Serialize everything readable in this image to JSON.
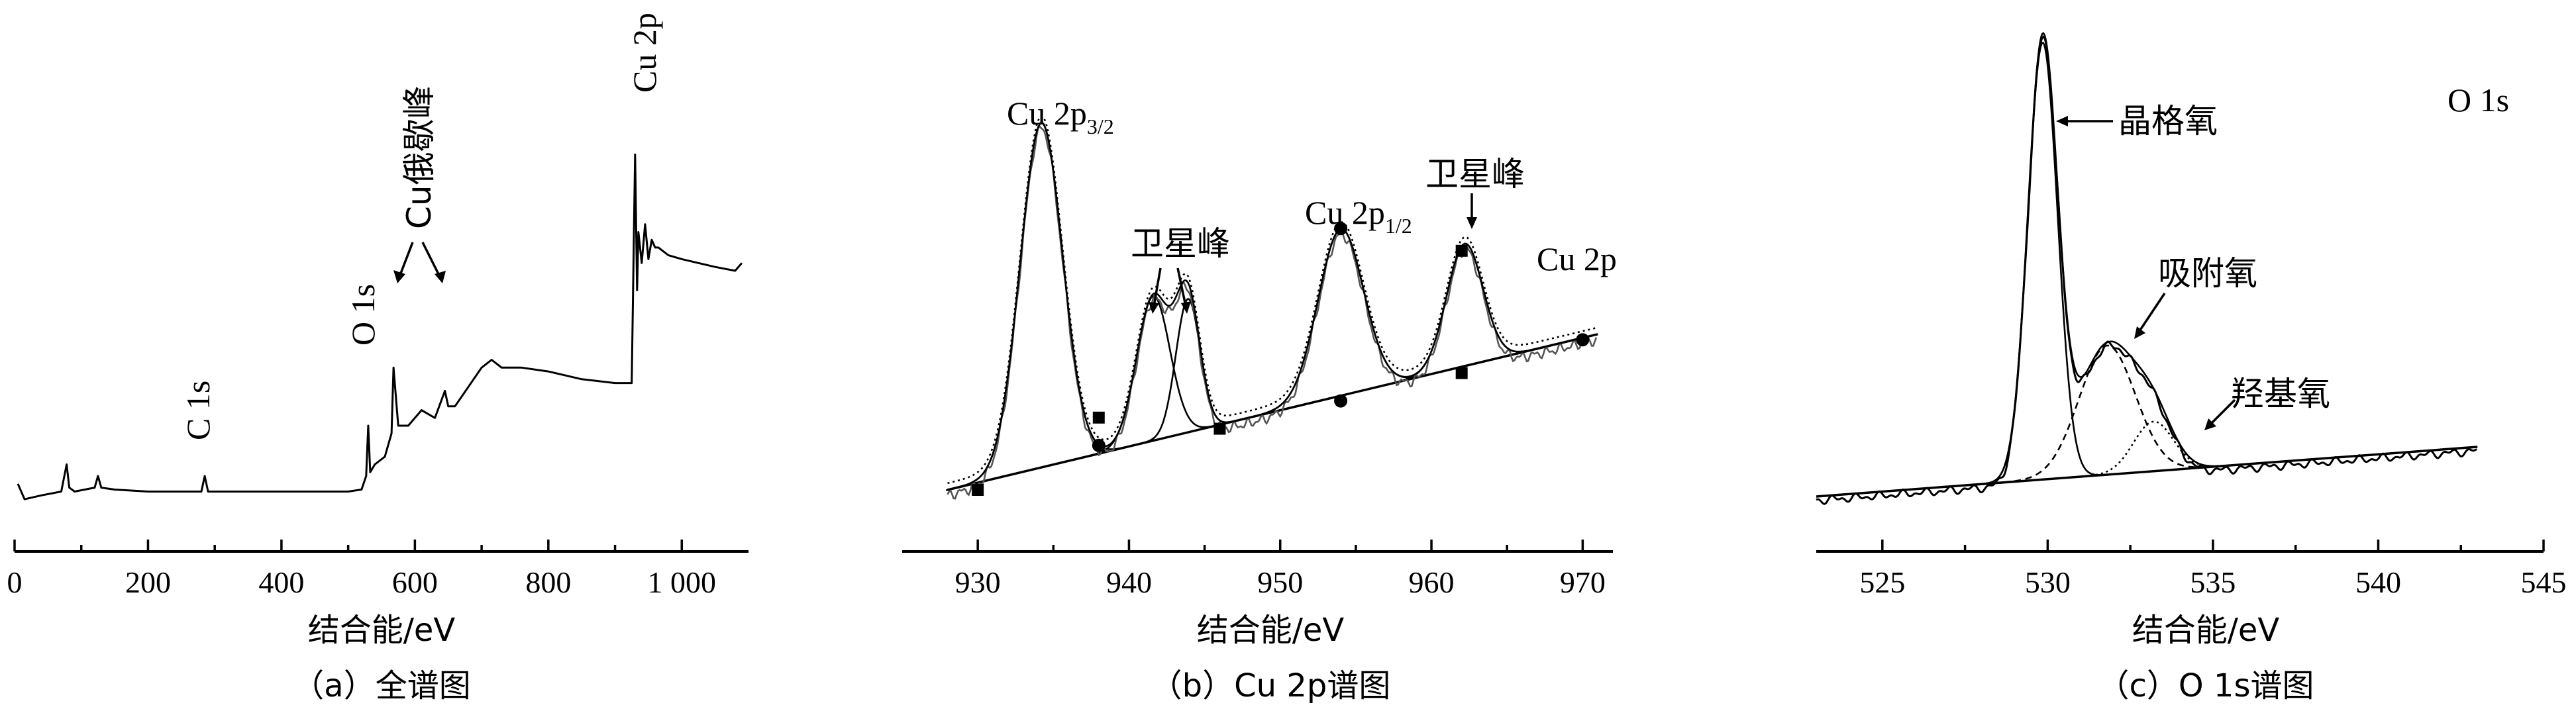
{
  "chart_data": [
    {
      "type": "line",
      "panel": "a",
      "caption": "（a）全谱图",
      "xlabel": "结合能/eV",
      "ylabel": "",
      "xlim": [
        0,
        1100
      ],
      "xticks": [
        0,
        200,
        400,
        600,
        800,
        1000
      ],
      "xtick_labels": [
        "0",
        "200",
        "400",
        "600",
        "800",
        "1 000"
      ],
      "grid": false,
      "annotations": [
        {
          "text": "C 1s",
          "x": 285
        },
        {
          "text": "O 1s",
          "x": 530
        },
        {
          "text": "Cu俄歇峰",
          "x": 600
        },
        {
          "text": "Cu 2p",
          "x": 933
        }
      ],
      "series": [
        {
          "x": [
            5,
            15,
            40,
            70,
            78,
            82,
            90,
            120,
            125,
            130,
            150,
            200,
            250,
            280,
            285,
            290,
            350,
            400,
            460,
            500,
            520,
            527,
            530,
            533,
            540,
            555,
            565,
            568,
            575,
            590,
            610,
            630,
            645,
            650,
            660,
            700,
            715,
            730,
            760,
            800,
            850,
            900,
            925,
            930,
            933,
            935,
            940,
            945,
            950,
            955,
            960,
            965,
            980,
            1000,
            1050,
            1080,
            1090
          ],
          "y": [
            0.05,
            0.01,
            0.02,
            0.03,
            0.1,
            0.04,
            0.03,
            0.04,
            0.07,
            0.04,
            0.035,
            0.03,
            0.03,
            0.03,
            0.07,
            0.03,
            0.03,
            0.03,
            0.03,
            0.03,
            0.035,
            0.07,
            0.2,
            0.08,
            0.1,
            0.12,
            0.18,
            0.35,
            0.2,
            0.2,
            0.24,
            0.22,
            0.29,
            0.25,
            0.25,
            0.35,
            0.37,
            0.35,
            0.35,
            0.34,
            0.32,
            0.31,
            0.31,
            0.9,
            0.55,
            0.7,
            0.62,
            0.72,
            0.63,
            0.68,
            0.66,
            0.66,
            0.64,
            0.63,
            0.61,
            0.6,
            0.62
          ]
        }
      ]
    },
    {
      "type": "line",
      "panel": "b",
      "caption": "（b）Cu 2p谱图",
      "xlabel": "结合能/eV",
      "ylabel": "",
      "xlim": [
        925,
        972
      ],
      "xticks": [
        930,
        940,
        950,
        960,
        970
      ],
      "grid": false,
      "legend": "Cu 2p",
      "annotations": [
        {
          "text": "Cu 2p",
          "sub": "3/2",
          "x": 934
        },
        {
          "text": "卫星峰",
          "x": 942.5
        },
        {
          "text": "Cu 2p",
          "sub": "1/2",
          "x": 954
        },
        {
          "text": "卫星峰",
          "x": 962.5
        }
      ],
      "peaks": [
        {
          "center": 934.2,
          "height": 0.62,
          "width": 1.4
        },
        {
          "center": 941.6,
          "height": 0.26,
          "width": 1.1
        },
        {
          "center": 943.9,
          "height": 0.24,
          "width": 0.8
        },
        {
          "center": 954.0,
          "height": 0.3,
          "width": 1.5
        },
        {
          "center": 962.2,
          "height": 0.22,
          "width": 1.2
        }
      ],
      "baseline": {
        "x": [
          928,
          971
        ],
        "y": [
          0.0,
          0.28
        ]
      },
      "markers": [
        {
          "x": 930,
          "y": 0.0
        },
        {
          "x": 938,
          "y": 0.08
        },
        {
          "x": 946,
          "y": 0.11
        },
        {
          "x": 954,
          "y": 0.16
        },
        {
          "x": 962,
          "y": 0.21
        },
        {
          "x": 970,
          "y": 0.27
        },
        {
          "x": 938,
          "y": 0.13
        },
        {
          "x": 954,
          "y": 0.47
        },
        {
          "x": 962,
          "y": 0.43
        }
      ]
    },
    {
      "type": "line",
      "panel": "c",
      "caption": "（c）O 1s谱图",
      "xlabel": "结合能/eV",
      "ylabel": "",
      "xlim": [
        523,
        545
      ],
      "xticks": [
        525,
        530,
        535,
        540,
        545
      ],
      "grid": false,
      "legend": "O 1s",
      "annotations": [
        {
          "text": "晶格氧",
          "x": 529.9
        },
        {
          "text": "吸附氧",
          "x": 531.8
        },
        {
          "text": "羟基氧",
          "x": 533.2
        }
      ],
      "peaks": [
        {
          "center": 529.85,
          "height": 0.88,
          "width": 0.45
        },
        {
          "center": 531.8,
          "height": 0.26,
          "width": 0.85
        },
        {
          "center": 533.2,
          "height": 0.1,
          "width": 0.6
        }
      ],
      "baseline": {
        "x": [
          523,
          543
        ],
        "y": [
          0.0,
          0.1
        ]
      }
    }
  ]
}
